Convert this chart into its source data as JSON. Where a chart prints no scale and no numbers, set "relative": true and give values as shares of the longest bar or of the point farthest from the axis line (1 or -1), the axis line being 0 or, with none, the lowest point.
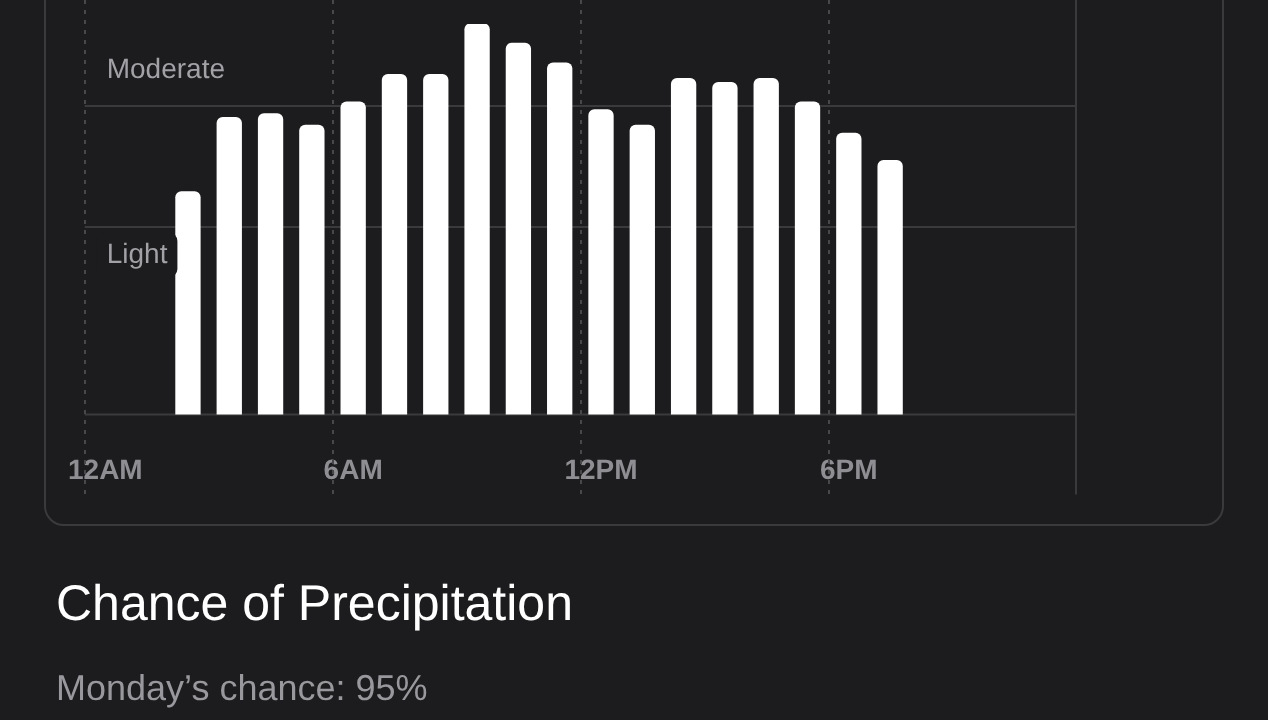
{
  "chart_data": {
    "type": "bar",
    "relative": true,
    "title": "Chance of Precipitation",
    "subtitle": "Monday’s chance: 95%",
    "color": "#ffffff",
    "categories": [
      "12AM",
      null,
      null,
      null,
      null,
      null,
      "6AM",
      null,
      null,
      null,
      null,
      null,
      "12PM",
      null,
      null,
      null,
      null,
      null,
      "6PM",
      null,
      null,
      null,
      null,
      null
    ],
    "values": [
      null,
      null,
      0.57,
      0.76,
      0.77,
      0.74,
      0.8,
      0.87,
      0.87,
      1,
      0.95,
      0.9,
      0.78,
      0.74,
      0.86,
      0.85,
      0.86,
      0.8,
      0.72,
      0.65,
      null,
      null,
      null,
      null
    ],
    "grid": "x",
    "legend": false,
    "ref_lines": [
      {
        "axis": "y",
        "value": 0.48,
        "label": "Light"
      },
      {
        "axis": "y",
        "value": 0.79,
        "label": "Moderate"
      }
    ]
  }
}
